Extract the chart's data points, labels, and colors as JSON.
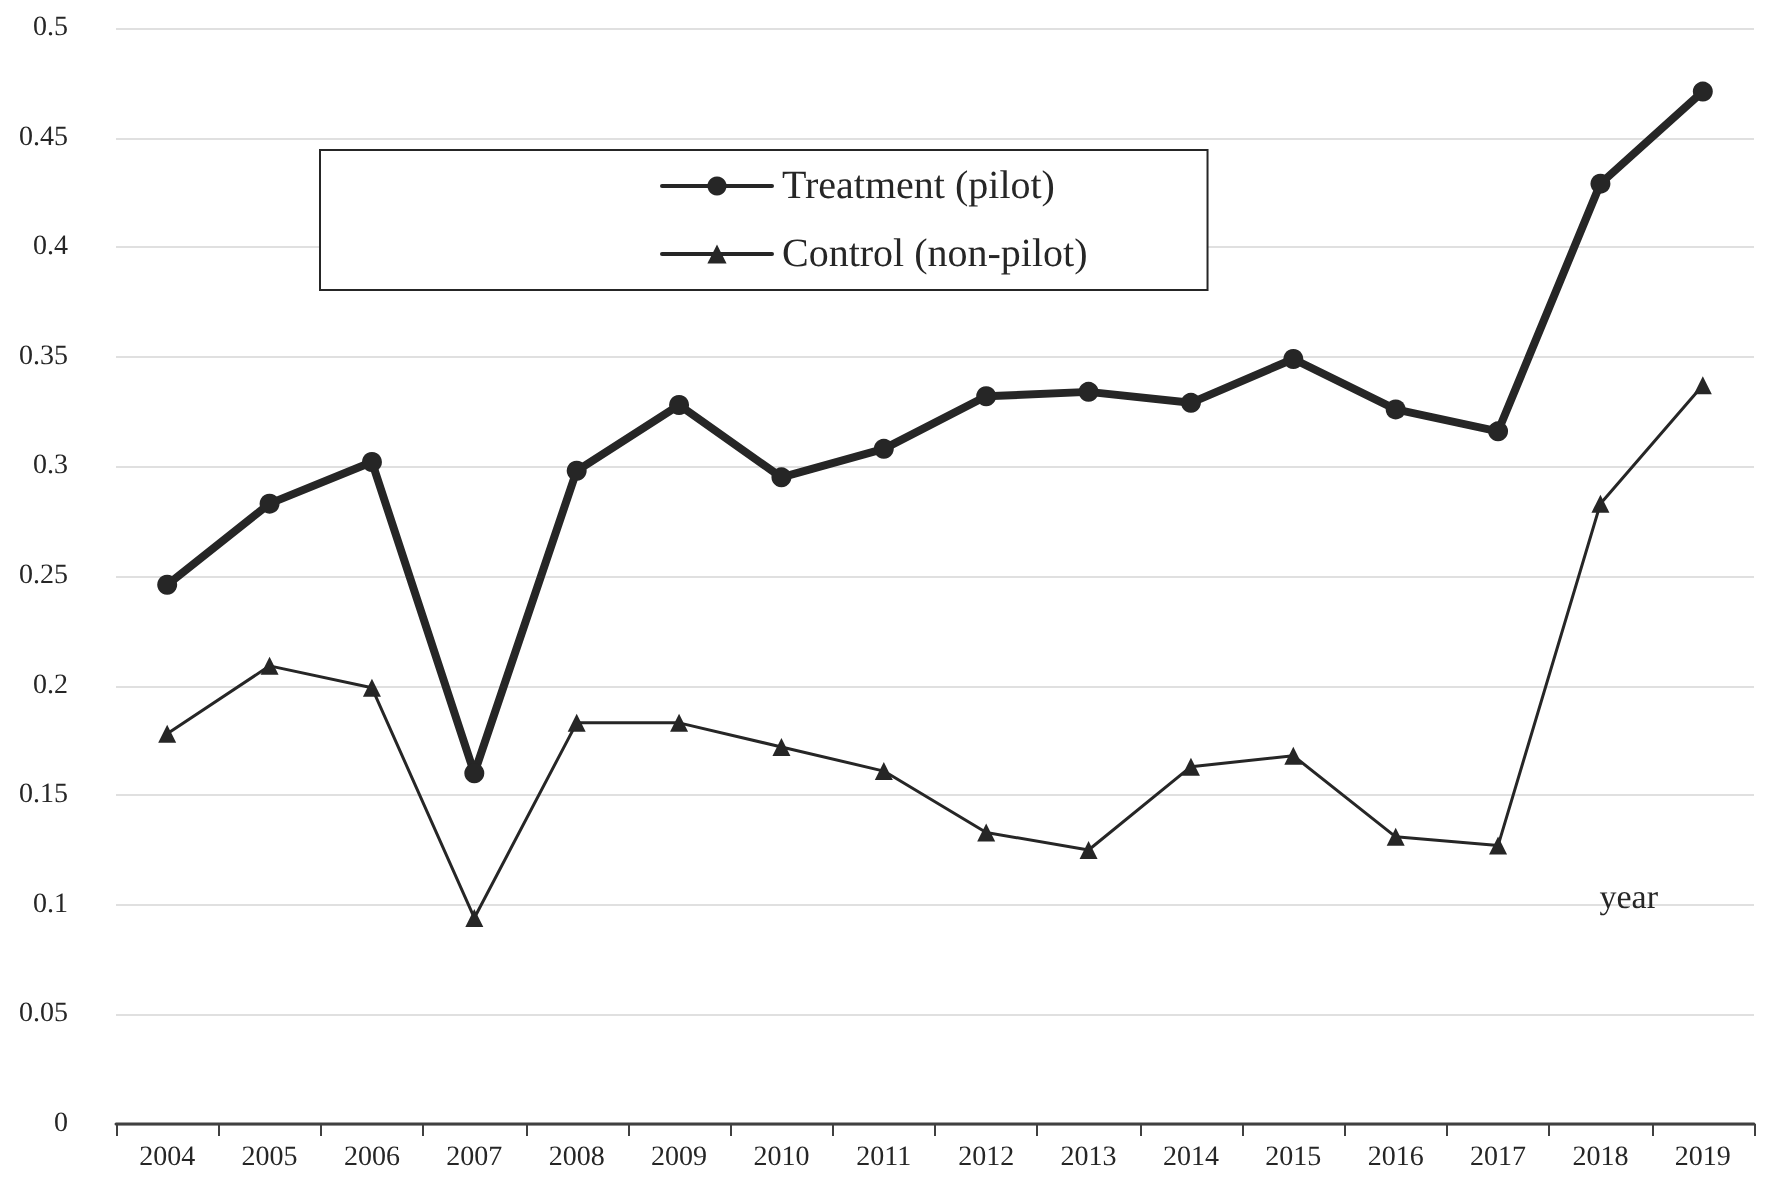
{
  "chart_data": {
    "type": "line",
    "xlabel": "year",
    "categories": [
      "2004",
      "2005",
      "2006",
      "2007",
      "2008",
      "2009",
      "2010",
      "2011",
      "2012",
      "2013",
      "2014",
      "2015",
      "2016",
      "2017",
      "2018",
      "2019"
    ],
    "series": [
      {
        "name": "Treatment (pilot)",
        "color": "#262626",
        "marker": "circle",
        "values": [
          0.246,
          0.283,
          0.302,
          0.16,
          0.298,
          0.328,
          0.295,
          0.308,
          0.332,
          0.334,
          0.329,
          0.349,
          0.326,
          0.316,
          0.429,
          0.471
        ]
      },
      {
        "name": "Control (non-pilot)",
        "color": "#262626",
        "marker": "triangle",
        "values": [
          0.178,
          0.209,
          0.199,
          0.094,
          0.183,
          0.183,
          0.172,
          0.161,
          0.133,
          0.125,
          0.163,
          0.168,
          0.131,
          0.127,
          0.283,
          0.337
        ]
      }
    ],
    "ylim": [
      0,
      0.5
    ],
    "yticks": [
      0,
      0.05,
      0.1,
      0.15,
      0.2,
      0.25,
      0.3,
      0.35,
      0.4,
      0.45,
      0.5
    ],
    "grid": "y",
    "legend": "top left",
    "line_style": "solid"
  }
}
